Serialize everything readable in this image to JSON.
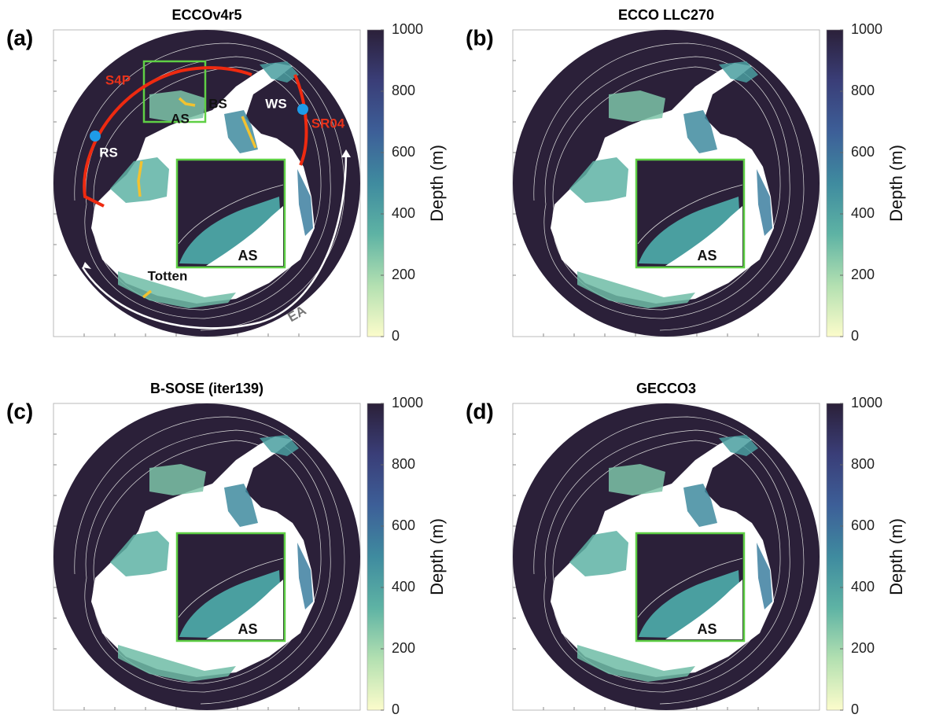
{
  "panels": [
    {
      "label": "(a)",
      "title": "ECCOv4r5",
      "annotations": [
        "S4P",
        "AS",
        "BS",
        "WS",
        "SR04",
        "RS",
        "Totten",
        "EA",
        "AS"
      ]
    },
    {
      "label": "(b)",
      "title": "ECCO LLC270",
      "annotations": [
        "AS"
      ]
    },
    {
      "label": "(c)",
      "title": "B-SOSE (iter139)",
      "annotations": [
        "AS"
      ]
    },
    {
      "label": "(d)",
      "title": "GECCO3",
      "annotations": [
        "AS"
      ]
    }
  ],
  "colorbar": {
    "label": "Depth (m)",
    "lim": [
      0,
      1000
    ],
    "ticks": [
      0,
      200,
      400,
      600,
      800,
      1000
    ],
    "colormap": [
      "#fcfccb",
      "#b3e0b1",
      "#5eb3a4",
      "#3f8b9f",
      "#3d5f98",
      "#3a3e78",
      "#2b2039"
    ]
  }
}
